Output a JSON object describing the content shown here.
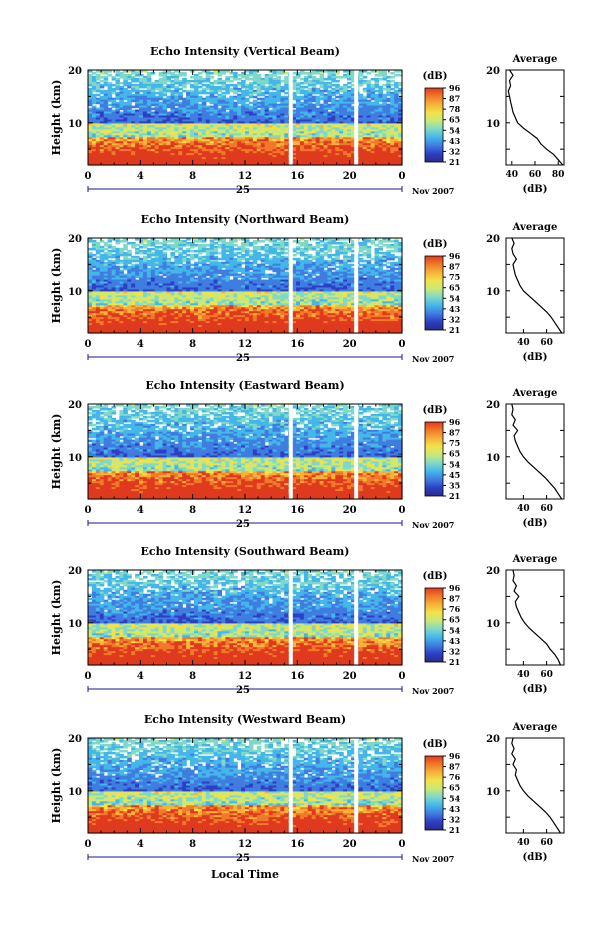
{
  "figure": {
    "xaxis_label": "Local Time",
    "date_label": "Nov 2007",
    "day_label": "25",
    "colorbar_unit": "(dB)",
    "colorbar_ticks": [
      "96",
      "87",
      "78",
      "65",
      "54",
      "43",
      "32",
      "21"
    ],
    "colorbar_ticks_alt": [
      "96",
      "87",
      "75",
      "65",
      "54",
      "43",
      "32",
      "21"
    ],
    "colorbar_ticks_east": [
      "96",
      "87",
      "75",
      "65",
      "54",
      "45",
      "35",
      "21"
    ],
    "colorbar_ticks_south": [
      "96",
      "87",
      "76",
      "65",
      "54",
      "43",
      "32",
      "21"
    ],
    "colorbar_ticks_west": [
      "96",
      "87",
      "76",
      "65",
      "54",
      "43",
      "32",
      "21"
    ],
    "palette": [
      "#2a2a8a",
      "#2d3fc4",
      "#3f7de0",
      "#45b6ea",
      "#7fd8c8",
      "#c8e87a",
      "#f2e24a",
      "#f6b23a",
      "#f07a2a",
      "#e03a1e"
    ]
  },
  "chart_data": [
    {
      "type": "heatmap",
      "title": "Echo Intensity (Vertical Beam)",
      "ylabel": "Height (km)",
      "xlim": [
        0,
        24
      ],
      "ylim": [
        2,
        20
      ],
      "xticks": [
        "0",
        "4",
        "8",
        "12",
        "16",
        "20",
        "0"
      ],
      "yticks": [
        "10",
        "20"
      ],
      "data_gaps_hours": [
        15.5,
        20.5
      ],
      "profile": {
        "title": "Average",
        "xlabel": "(dB)",
        "xlim": [
          35,
          85
        ],
        "xticks": [
          "40",
          "60",
          "80"
        ],
        "yticks": [
          "10",
          "20"
        ],
        "height_km": [
          2,
          3,
          4,
          5,
          6,
          7,
          8,
          9,
          10,
          11,
          12,
          13,
          14,
          15,
          16,
          17,
          18,
          19,
          20
        ],
        "db": [
          84,
          80,
          76,
          70,
          65,
          62,
          56,
          50,
          45,
          43,
          41,
          40,
          39,
          38,
          37,
          39,
          38,
          41,
          38
        ]
      }
    },
    {
      "type": "heatmap",
      "title": "Echo Intensity (Northward Beam)",
      "ylabel": "Height (km)",
      "xlim": [
        0,
        24
      ],
      "ylim": [
        2,
        20
      ],
      "xticks": [
        "0",
        "4",
        "8",
        "12",
        "16",
        "20",
        "0"
      ],
      "yticks": [
        "10",
        "20"
      ],
      "data_gaps_hours": [
        15.5,
        20.5
      ],
      "profile": {
        "title": "Average",
        "xlabel": "(dB)",
        "xlim": [
          25,
          75
        ],
        "xticks": [
          "40",
          "60"
        ],
        "yticks": [
          "10",
          "20"
        ],
        "height_km": [
          2,
          3,
          4,
          5,
          6,
          7,
          8,
          9,
          10,
          11,
          12,
          13,
          14,
          15,
          16,
          17,
          18,
          19,
          20
        ],
        "db": [
          73,
          70,
          67,
          64,
          60,
          55,
          50,
          45,
          40,
          37,
          35,
          33,
          32,
          31,
          34,
          31,
          30,
          32,
          30
        ]
      }
    },
    {
      "type": "heatmap",
      "title": "Echo Intensity (Eastward Beam)",
      "ylabel": "Height (km)",
      "xlim": [
        0,
        24
      ],
      "ylim": [
        2,
        20
      ],
      "xticks": [
        "0",
        "4",
        "8",
        "12",
        "16",
        "20",
        "0"
      ],
      "yticks": [
        "10",
        "20"
      ],
      "data_gaps_hours": [
        15.5,
        20.5
      ],
      "profile": {
        "title": "Average",
        "xlabel": "(dB)",
        "xlim": [
          25,
          75
        ],
        "xticks": [
          "40",
          "60"
        ],
        "yticks": [
          "10",
          "20"
        ],
        "height_km": [
          2,
          3,
          4,
          5,
          6,
          7,
          8,
          9,
          10,
          11,
          12,
          13,
          14,
          15,
          16,
          17,
          18,
          19,
          20
        ],
        "db": [
          73,
          70,
          67,
          63,
          59,
          54,
          49,
          44,
          40,
          37,
          35,
          33,
          32,
          35,
          31,
          33,
          30,
          31,
          30
        ]
      }
    },
    {
      "type": "heatmap",
      "title": "Echo Intensity (Southward Beam)",
      "ylabel": "Height (km)",
      "xlim": [
        0,
        24
      ],
      "ylim": [
        2,
        20
      ],
      "xticks": [
        "0",
        "4",
        "8",
        "12",
        "16",
        "20",
        "0"
      ],
      "yticks": [
        "10",
        "20"
      ],
      "data_gaps_hours": [
        15.5,
        20.5
      ],
      "profile": {
        "title": "Average",
        "xlabel": "(dB)",
        "xlim": [
          25,
          75
        ],
        "xticks": [
          "40",
          "60"
        ],
        "yticks": [
          "10",
          "20"
        ],
        "height_km": [
          2,
          3,
          4,
          5,
          6,
          7,
          8,
          9,
          10,
          11,
          12,
          13,
          14,
          15,
          16,
          17,
          18,
          19,
          20
        ],
        "db": [
          72,
          70,
          67,
          63,
          60,
          55,
          50,
          45,
          41,
          38,
          36,
          34,
          33,
          36,
          32,
          34,
          31,
          32,
          31
        ]
      }
    },
    {
      "type": "heatmap",
      "title": "Echo Intensity (Westward Beam)",
      "ylabel": "Height (km)",
      "xlim": [
        0,
        24
      ],
      "ylim": [
        2,
        20
      ],
      "xticks": [
        "0",
        "4",
        "8",
        "12",
        "16",
        "20",
        "0"
      ],
      "yticks": [
        "10",
        "20"
      ],
      "data_gaps_hours": [
        15.5,
        20.5
      ],
      "profile": {
        "title": "Average",
        "xlabel": "(dB)",
        "xlim": [
          25,
          75
        ],
        "xticks": [
          "40",
          "60"
        ],
        "yticks": [
          "10",
          "20"
        ],
        "height_km": [
          2,
          3,
          4,
          5,
          6,
          7,
          8,
          9,
          10,
          11,
          12,
          13,
          14,
          15,
          16,
          17,
          18,
          19,
          20
        ],
        "db": [
          72,
          69,
          66,
          63,
          59,
          54,
          49,
          44,
          40,
          37,
          35,
          33,
          34,
          31,
          33,
          30,
          32,
          30,
          31
        ]
      }
    }
  ]
}
